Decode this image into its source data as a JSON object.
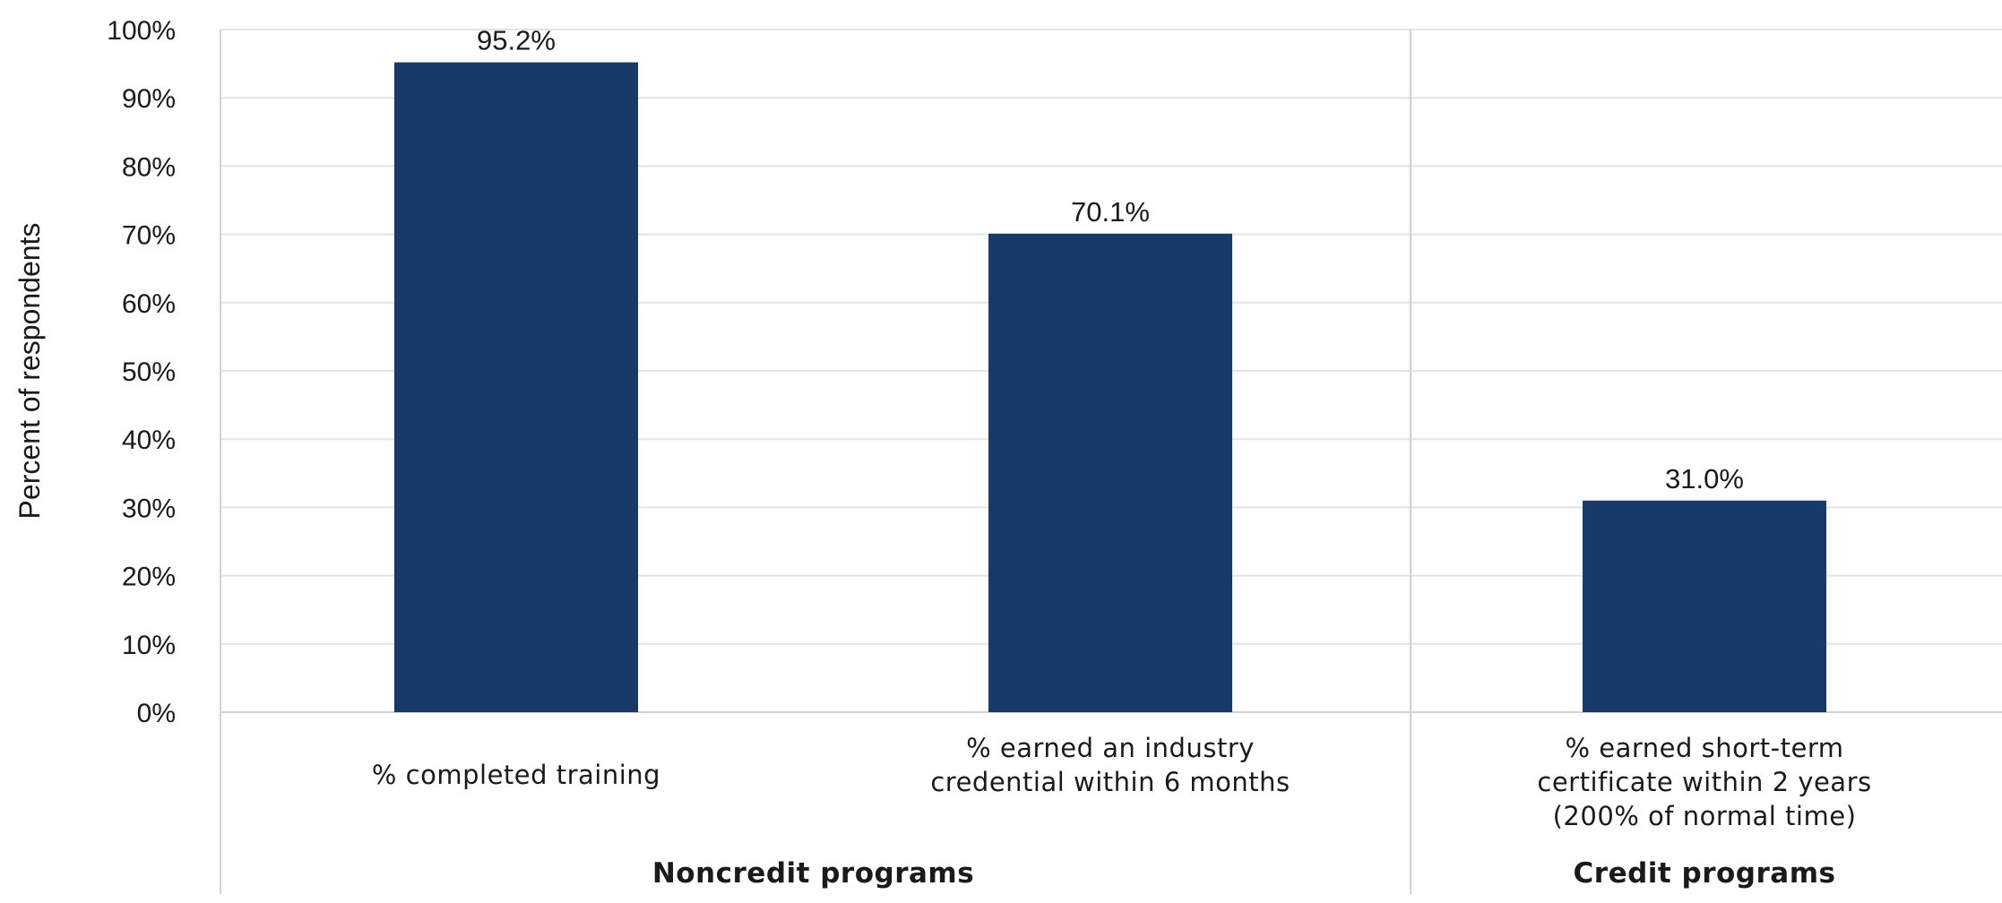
{
  "chart_data": {
    "type": "bar",
    "ylabel": "Percent of respondents",
    "ylim": [
      0,
      100
    ],
    "yticks": [
      "0%",
      "10%",
      "20%",
      "30%",
      "40%",
      "50%",
      "60%",
      "70%",
      "80%",
      "90%",
      "100%"
    ],
    "grid": true,
    "colors": {
      "bar": "#173a6b"
    },
    "categories": [
      [
        "% completed training"
      ],
      [
        "% earned an industry",
        "credential within 6 months"
      ],
      [
        "% earned short-term",
        "certificate within 2 years",
        "(200% of normal time)"
      ]
    ],
    "values": [
      95.2,
      70.1,
      31.0
    ],
    "data_labels": [
      "95.2%",
      "70.1%",
      "31.0%"
    ],
    "groups": [
      {
        "label": "Noncredit programs",
        "categories": [
          0,
          1
        ]
      },
      {
        "label": "Credit programs",
        "categories": [
          2
        ]
      }
    ]
  }
}
